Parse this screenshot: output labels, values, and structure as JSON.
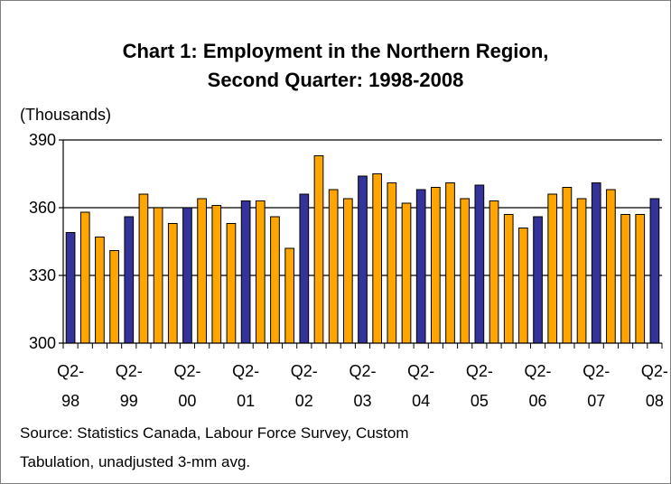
{
  "chart_data": {
    "type": "bar",
    "title_line1": "Chart 1: Employment in the Northern Region,",
    "title_line2": "Second Quarter: 1998-2008",
    "ylabel": "(Thousands)",
    "ylim": [
      300,
      390
    ],
    "yticks": [
      300,
      330,
      360,
      390
    ],
    "gridlines": [
      330,
      360,
      390
    ],
    "x_tick_labels": [
      {
        "top": "Q2-",
        "bottom": "98",
        "index": 0
      },
      {
        "top": "Q2-",
        "bottom": "99",
        "index": 4
      },
      {
        "top": "Q2-",
        "bottom": "00",
        "index": 8
      },
      {
        "top": "Q2-",
        "bottom": "01",
        "index": 12
      },
      {
        "top": "Q2-",
        "bottom": "02",
        "index": 16
      },
      {
        "top": "Q2-",
        "bottom": "03",
        "index": 20
      },
      {
        "top": "Q2-",
        "bottom": "04",
        "index": 24
      },
      {
        "top": "Q2-",
        "bottom": "05",
        "index": 28
      },
      {
        "top": "Q2-",
        "bottom": "06",
        "index": 32
      },
      {
        "top": "Q2-",
        "bottom": "07",
        "index": 36
      },
      {
        "top": "Q2-",
        "bottom": "08",
        "index": 40
      }
    ],
    "values": [
      349,
      358,
      347,
      341,
      356,
      366,
      360,
      353,
      360,
      364,
      361,
      353,
      363,
      363,
      356,
      342,
      366,
      383,
      368,
      364,
      374,
      375,
      371,
      362,
      368,
      369,
      371,
      364,
      370,
      363,
      357,
      351,
      356,
      366,
      369,
      364,
      371,
      368,
      357,
      357,
      364
    ],
    "colors": {
      "q2": "#333399",
      "other": "#ffa500",
      "outline": "#000000"
    }
  },
  "source_line1": "Source:  Statistics Canada, Labour Force Survey, Custom",
  "source_line2": "Tabulation, unadjusted 3-mm avg."
}
